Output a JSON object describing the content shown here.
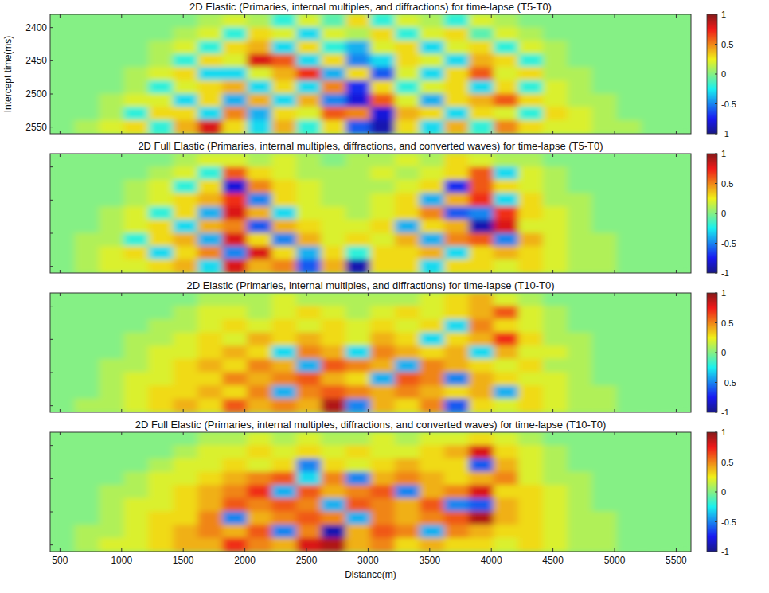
{
  "chart_data": [
    {
      "type": "heatmap",
      "title": "2D Elastic (Primaries, internal multiples, and diffractions) for time-lapse (T5-T0)",
      "y_label": "Intercept time(ms)",
      "x": [
        520,
        720,
        920,
        1120,
        1320,
        1520,
        1720,
        1920,
        2120,
        2320,
        2520,
        2720,
        2920,
        3120,
        3320,
        3520,
        3720,
        3920,
        4120,
        4320,
        4520,
        4720,
        4920,
        5120,
        5320,
        5520
      ],
      "y": [
        2390,
        2410,
        2430,
        2450,
        2470,
        2490,
        2510,
        2530,
        2550
      ],
      "values": [
        [
          0,
          0,
          0,
          0,
          0,
          0,
          0.1,
          0.2,
          0.1,
          -0.2,
          0.2,
          -0.1,
          0.3,
          -0.2,
          0.2,
          0.1,
          -0.2,
          0.2,
          0.1,
          0,
          0,
          0,
          0,
          0,
          0,
          0
        ],
        [
          0,
          0,
          0,
          0,
          0,
          0.1,
          0.2,
          -0.2,
          0.3,
          0.2,
          -0.3,
          0.2,
          0.1,
          0.3,
          -0.2,
          0.2,
          0.3,
          -0.1,
          0.2,
          0.1,
          0,
          0,
          0,
          0,
          0,
          0
        ],
        [
          0,
          0,
          0,
          0,
          0.1,
          0.2,
          -0.2,
          0.3,
          0.4,
          -0.3,
          0.3,
          -0.2,
          -0.4,
          0.2,
          0.3,
          -0.3,
          0.2,
          0.3,
          -0.2,
          0.2,
          0.1,
          0,
          0,
          0,
          0,
          0
        ],
        [
          0,
          0,
          0,
          0,
          0.1,
          -0.2,
          0.3,
          0.2,
          0.8,
          0.6,
          -0.3,
          0.3,
          -0.5,
          -0.3,
          0.3,
          0.2,
          -0.3,
          0.4,
          0.3,
          -0.2,
          0.1,
          0,
          0,
          0,
          0,
          0
        ],
        [
          0,
          0,
          0,
          0.1,
          0.2,
          0.3,
          -0.3,
          -0.3,
          0.2,
          0.4,
          0.7,
          -0.4,
          0.3,
          -0.6,
          0.2,
          -0.3,
          0.3,
          0.6,
          0.2,
          0.3,
          0.1,
          0.1,
          0,
          0,
          0,
          0
        ],
        [
          0,
          0,
          0,
          0.1,
          -0.2,
          0.2,
          0.3,
          0.4,
          -0.3,
          0.3,
          -0.3,
          0.5,
          -0.7,
          0.3,
          -0.2,
          0.2,
          0.3,
          -0.3,
          0.3,
          -0.2,
          0.2,
          0.1,
          0,
          0,
          0,
          0
        ],
        [
          0,
          0,
          0.1,
          0.2,
          0.2,
          -0.3,
          0.3,
          -0.4,
          0.4,
          -0.3,
          0.4,
          -0.5,
          -0.8,
          0.6,
          0.2,
          -0.4,
          0.3,
          0.4,
          0.6,
          0.3,
          0.2,
          0.1,
          0.1,
          0,
          0,
          0
        ],
        [
          0,
          0,
          0.1,
          -0.2,
          0.3,
          0.3,
          -0.3,
          0.5,
          -0.4,
          0.3,
          0.2,
          0.6,
          0.5,
          -0.8,
          0.4,
          0.3,
          -0.3,
          0.3,
          0.2,
          -0.2,
          0.3,
          0.2,
          0.1,
          0,
          0,
          0
        ],
        [
          0,
          0.1,
          0.2,
          0.3,
          -0.2,
          0.4,
          0.8,
          0.3,
          -0.3,
          0.4,
          -0.2,
          0.3,
          -0.6,
          -0.9,
          0.3,
          -0.3,
          0.4,
          -0.2,
          0.5,
          0.3,
          0.2,
          0.2,
          0.1,
          0.1,
          0,
          0
        ]
      ],
      "xlim": [
        420,
        5620
      ],
      "ylim": [
        2380,
        2560
      ],
      "xticks": [
        500,
        1000,
        1500,
        2000,
        2500,
        3000,
        3500,
        4000,
        4500,
        5000,
        5500
      ],
      "yticks": [
        2400,
        2450,
        2500,
        2550
      ],
      "tick_labels": "y",
      "color_range": [
        -1,
        1
      ],
      "color_ticks": [
        -1,
        -0.5,
        0,
        0.5,
        1
      ]
    },
    {
      "type": "heatmap",
      "title": "2D Full Elastic (Primaries, internal multiples, diffractions, and converted waves) for time-lapse (T5-T0)",
      "x": [
        520,
        720,
        920,
        1120,
        1320,
        1520,
        1720,
        1920,
        2120,
        2320,
        2520,
        2720,
        2920,
        3120,
        3320,
        3520,
        3720,
        3920,
        4120,
        4320,
        4520,
        4720,
        4920,
        5120,
        5320,
        5520
      ],
      "y": [
        2390,
        2410,
        2430,
        2450,
        2470,
        2490,
        2510,
        2530,
        2550
      ],
      "values": [
        [
          0,
          0,
          0,
          0,
          0,
          0.1,
          0.2,
          0.2,
          0.1,
          0.2,
          0.1,
          0,
          0.1,
          0.1,
          0.2,
          0.1,
          0.3,
          0.2,
          0.1,
          0.1,
          0,
          0,
          0,
          0,
          0,
          0
        ],
        [
          0,
          0,
          0,
          0,
          0.1,
          0.2,
          -0.2,
          0.6,
          0.3,
          0.2,
          0.1,
          0.1,
          0.1,
          0.2,
          0.1,
          0.2,
          0.3,
          0.6,
          -0.3,
          0.2,
          0.1,
          0,
          0,
          0,
          0,
          0
        ],
        [
          0,
          0,
          0,
          0.1,
          0.2,
          -0.2,
          0.3,
          -0.8,
          0.5,
          0.3,
          0.2,
          0.1,
          0.1,
          0.1,
          0.2,
          0.3,
          -0.7,
          0.6,
          0.3,
          0.2,
          0.1,
          0,
          0,
          0,
          0,
          0
        ],
        [
          0,
          0,
          0,
          0.1,
          0.2,
          0.3,
          0.4,
          0.7,
          -0.5,
          0.3,
          0.2,
          0.1,
          0.1,
          0.2,
          0.3,
          -0.4,
          0.4,
          0.7,
          -0.3,
          0.3,
          0.1,
          0.1,
          0,
          0,
          0,
          0
        ],
        [
          0,
          0,
          0.1,
          0.2,
          -0.2,
          0.3,
          -0.4,
          0.8,
          0.4,
          -0.3,
          0.2,
          0.2,
          0.1,
          0.2,
          0.3,
          0.5,
          -0.6,
          -0.5,
          0.7,
          0.3,
          0.2,
          0.1,
          0,
          0,
          0,
          0
        ],
        [
          0,
          0,
          0.1,
          0.2,
          0.3,
          -0.3,
          0.4,
          0.5,
          -0.6,
          0.4,
          0.3,
          0.2,
          0.2,
          0.3,
          -0.4,
          0.3,
          0.4,
          -0.9,
          0.8,
          0.2,
          0.2,
          0.1,
          0,
          0,
          0,
          0
        ],
        [
          0,
          0.1,
          0.1,
          -0.2,
          0.3,
          0.4,
          -0.4,
          0.8,
          0.3,
          -0.5,
          0.4,
          0.2,
          0.3,
          0.2,
          0.4,
          -0.4,
          0.5,
          0.6,
          -0.5,
          0.4,
          0.2,
          0.1,
          0.1,
          0,
          0,
          0
        ],
        [
          0,
          0.1,
          0.2,
          0.3,
          -0.3,
          0.3,
          0.5,
          -0.5,
          0.8,
          0.3,
          -0.4,
          0.3,
          -0.2,
          0.3,
          0.3,
          0.4,
          -0.3,
          0.3,
          0.4,
          0.3,
          0.2,
          0.1,
          0.1,
          0,
          0,
          0
        ],
        [
          0,
          0.1,
          0.2,
          0.2,
          0.3,
          0.4,
          -0.3,
          0.8,
          0.4,
          0.5,
          -0.6,
          0.4,
          -0.9,
          0.3,
          0.3,
          -0.3,
          0.3,
          0.3,
          0.2,
          0.3,
          0.2,
          0.1,
          0.1,
          0,
          0,
          0
        ]
      ],
      "xlim": [
        420,
        5620
      ],
      "ylim": [
        2380,
        2560
      ],
      "xticks": [
        500,
        1000,
        1500,
        2000,
        2500,
        3000,
        3500,
        4000,
        4500,
        5000,
        5500
      ],
      "yticks": [
        2400,
        2450,
        2500,
        2550
      ],
      "tick_labels": false,
      "color_range": [
        -1,
        1
      ],
      "color_ticks": [
        -1,
        -0.5,
        0,
        0.5,
        1
      ]
    },
    {
      "type": "heatmap",
      "title": "2D Elastic (Primaries, internal multiples, and diffractions) for time-lapse (T10-T0)",
      "x": [
        520,
        720,
        920,
        1120,
        1320,
        1520,
        1720,
        1920,
        2120,
        2320,
        2520,
        2720,
        2920,
        3120,
        3320,
        3520,
        3720,
        3920,
        4120,
        4320,
        4520,
        4720,
        4920,
        5120,
        5320,
        5520
      ],
      "y": [
        2390,
        2410,
        2430,
        2450,
        2470,
        2490,
        2510,
        2530,
        2550
      ],
      "values": [
        [
          0,
          0,
          0,
          0,
          0,
          0,
          0.1,
          0.1,
          0.1,
          0.2,
          0.1,
          0.1,
          0.1,
          0.1,
          0.1,
          0.2,
          0.3,
          0.4,
          0.2,
          0.1,
          0,
          0,
          0,
          0,
          0,
          0
        ],
        [
          0,
          0,
          0,
          0,
          0,
          0.1,
          0.2,
          0.2,
          0.1,
          0.2,
          0.3,
          0.2,
          0.1,
          0.2,
          0.3,
          0.2,
          0.3,
          0.4,
          0.6,
          0.2,
          0.1,
          0,
          0,
          0,
          0,
          0
        ],
        [
          0,
          0,
          0,
          0,
          0.1,
          0.1,
          0.2,
          0.3,
          0.2,
          0.3,
          0.2,
          0.3,
          0.2,
          0.3,
          0.2,
          0.3,
          -0.3,
          0.5,
          0.3,
          0.2,
          0.1,
          0,
          0,
          0,
          0,
          0
        ],
        [
          0,
          0,
          0,
          0.1,
          0.1,
          0.2,
          0.3,
          0.2,
          0.4,
          0.3,
          0.4,
          0.3,
          0.2,
          0.4,
          0.3,
          -0.3,
          0.3,
          0.4,
          0.7,
          0.3,
          0.1,
          0.1,
          0,
          0,
          0,
          0
        ],
        [
          0,
          0,
          0,
          0.1,
          0.2,
          0.2,
          0.3,
          0.4,
          0.3,
          -0.3,
          0.5,
          0.4,
          -0.3,
          0.5,
          0.4,
          0.3,
          0.4,
          -0.3,
          0.4,
          0.2,
          0.2,
          0.1,
          0,
          0,
          0,
          0
        ],
        [
          0,
          0,
          0.1,
          0.1,
          0.2,
          0.3,
          0.4,
          0.3,
          0.5,
          0.4,
          -0.4,
          0.6,
          0.5,
          0.4,
          -0.4,
          0.5,
          0.4,
          0.3,
          0.2,
          0.3,
          0.1,
          0.1,
          0,
          0,
          0,
          0
        ],
        [
          0,
          0,
          0.1,
          0.2,
          0.2,
          0.3,
          0.3,
          0.5,
          0.4,
          0.5,
          0.6,
          0.4,
          0.3,
          -0.4,
          0.6,
          0.5,
          -0.5,
          0.4,
          0.3,
          0.2,
          0.2,
          0.1,
          0,
          0,
          0,
          0
        ],
        [
          0,
          0,
          0.1,
          0.2,
          0.3,
          0.3,
          0.4,
          0.3,
          0.5,
          -0.4,
          0.5,
          0.6,
          0.5,
          0.4,
          0.5,
          0.4,
          0.3,
          0.4,
          -0.4,
          0.3,
          0.2,
          0.1,
          0.1,
          0,
          0,
          0
        ],
        [
          0,
          0.1,
          0.1,
          0.2,
          0.3,
          0.4,
          0.3,
          0.6,
          0.4,
          0.5,
          0.4,
          0.9,
          -0.5,
          0.4,
          0.3,
          0.5,
          -0.6,
          0.3,
          0.2,
          0.3,
          0.2,
          0.1,
          0.1,
          0,
          0,
          0
        ]
      ],
      "xlim": [
        420,
        5620
      ],
      "ylim": [
        2380,
        2560
      ],
      "xticks": [
        500,
        1000,
        1500,
        2000,
        2500,
        3000,
        3500,
        4000,
        4500,
        5000,
        5500
      ],
      "yticks": [
        2400,
        2450,
        2500,
        2550
      ],
      "tick_labels": false,
      "color_range": [
        -1,
        1
      ],
      "color_ticks": [
        -1,
        -0.5,
        0,
        0.5,
        1
      ]
    },
    {
      "type": "heatmap",
      "title": "2D Full Elastic (Primaries, internal multiples, diffractions, and converted waves) for time-lapse (T10-T0)",
      "x_label": "Distance(m)",
      "x": [
        520,
        720,
        920,
        1120,
        1320,
        1520,
        1720,
        1920,
        2120,
        2320,
        2520,
        2720,
        2920,
        3120,
        3320,
        3520,
        3720,
        3920,
        4120,
        4320,
        4520,
        4720,
        4920,
        5120,
        5320,
        5520
      ],
      "y": [
        2390,
        2410,
        2430,
        2450,
        2470,
        2490,
        2510,
        2530,
        2550
      ],
      "values": [
        [
          0,
          0,
          0,
          0,
          0,
          0,
          0.1,
          0.1,
          0.2,
          0.1,
          0.2,
          0.1,
          0.1,
          0.2,
          0.1,
          0.2,
          0.2,
          0.3,
          0.2,
          0.1,
          0,
          0,
          0,
          0,
          0,
          0
        ],
        [
          0,
          0,
          0,
          0,
          0,
          0.1,
          0.2,
          0.2,
          0.3,
          0.2,
          0.3,
          0.2,
          0.3,
          0.2,
          0.2,
          0.3,
          0.4,
          0.8,
          0.3,
          0.2,
          0.1,
          0,
          0,
          0,
          0,
          0
        ],
        [
          0,
          0,
          0,
          0,
          0.1,
          0.2,
          0.2,
          0.3,
          0.2,
          0.3,
          -0.5,
          0.3,
          0.2,
          0.3,
          0.4,
          0.3,
          0.3,
          -0.6,
          0.4,
          0.2,
          0.1,
          0,
          0,
          0,
          0,
          0
        ],
        [
          0,
          0,
          0,
          0.1,
          0.2,
          0.2,
          0.3,
          0.4,
          0.5,
          0.6,
          -0.3,
          0.5,
          -0.5,
          0.4,
          0.5,
          0.4,
          0.3,
          0.4,
          0.5,
          0.2,
          0.1,
          0.1,
          0,
          0,
          0,
          0
        ],
        [
          0,
          0,
          0.1,
          0.1,
          0.2,
          0.3,
          0.4,
          0.5,
          0.7,
          -0.4,
          0.6,
          0.4,
          0.5,
          0.6,
          -0.5,
          0.4,
          0.5,
          0.8,
          0.3,
          0.3,
          0.2,
          0.1,
          0,
          0,
          0,
          0
        ],
        [
          0,
          0,
          0.1,
          0.2,
          0.2,
          0.3,
          0.4,
          0.6,
          0.5,
          0.6,
          0.5,
          -0.4,
          0.6,
          0.5,
          0.4,
          0.6,
          -0.5,
          -0.6,
          0.4,
          0.3,
          0.2,
          0.1,
          0,
          0,
          0,
          0
        ],
        [
          0,
          0,
          0.1,
          0.2,
          0.3,
          0.3,
          0.5,
          -0.5,
          0.4,
          0.5,
          0.6,
          0.5,
          -0.4,
          0.5,
          0.4,
          0.5,
          0.6,
          0.9,
          0.4,
          0.3,
          0.2,
          0.1,
          0.1,
          0,
          0,
          0
        ],
        [
          0,
          0.1,
          0.1,
          0.2,
          0.3,
          0.4,
          0.5,
          0.4,
          0.6,
          -0.5,
          0.5,
          -0.9,
          0.4,
          0.6,
          0.5,
          -0.4,
          0.5,
          0.4,
          0.3,
          0.3,
          0.2,
          0.1,
          0.1,
          0,
          0,
          0
        ],
        [
          0,
          0.1,
          0.2,
          0.2,
          0.3,
          0.4,
          0.4,
          0.7,
          0.5,
          0.4,
          0.8,
          0.9,
          0.4,
          0.5,
          0.3,
          0.4,
          0.3,
          0.3,
          0.2,
          0.3,
          0.2,
          0.1,
          0.1,
          0,
          0,
          0
        ]
      ],
      "xlim": [
        420,
        5620
      ],
      "ylim": [
        2380,
        2560
      ],
      "xticks": [
        500,
        1000,
        1500,
        2000,
        2500,
        3000,
        3500,
        4000,
        4500,
        5000,
        5500
      ],
      "yticks": [
        2400,
        2450,
        2500,
        2550
      ],
      "tick_labels": "x",
      "color_range": [
        -1,
        1
      ],
      "color_ticks": [
        -1,
        -0.5,
        0,
        0.5,
        1
      ]
    }
  ]
}
